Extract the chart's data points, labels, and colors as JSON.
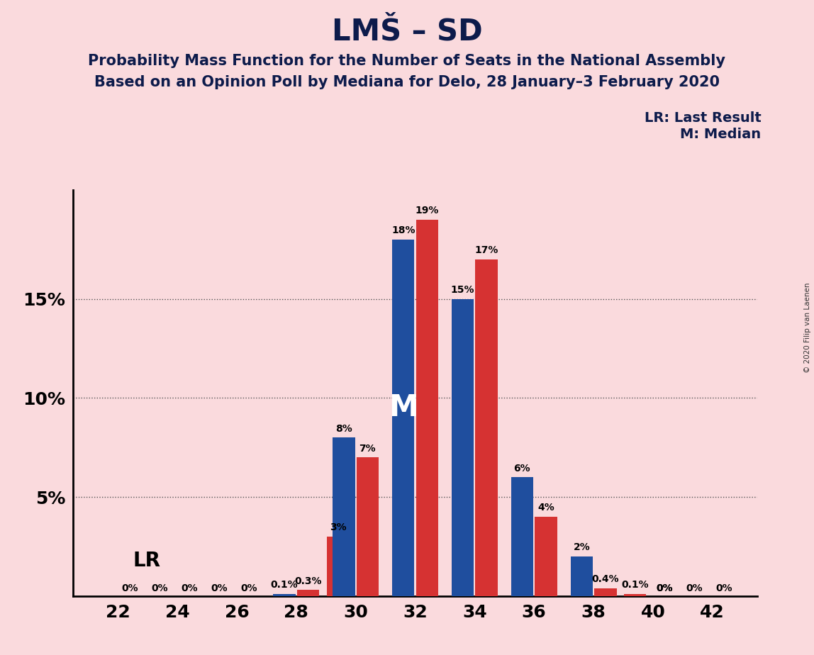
{
  "title": "LMŠ – SD",
  "subtitle1": "Probability Mass Function for the Number of Seats in the National Assembly",
  "subtitle2": "Based on an Opinion Poll by Mediana for Delo, 28 January–3 February 2020",
  "copyright": "© 2020 Filip van Laenen",
  "seats": [
    28,
    29,
    30,
    31,
    32,
    33,
    34,
    35,
    36,
    37,
    38,
    39,
    40
  ],
  "blue_values": [
    0.1,
    0.0,
    8.0,
    0.0,
    18.0,
    0.0,
    15.0,
    0.0,
    6.0,
    0.0,
    2.0,
    0.0,
    0.0
  ],
  "red_values": [
    0.3,
    3.0,
    7.0,
    0.0,
    19.0,
    0.0,
    17.0,
    0.0,
    4.0,
    0.0,
    0.4,
    0.1,
    0.0
  ],
  "blue_labels": [
    "0.1%",
    "",
    "8%",
    "",
    "18%",
    "",
    "15%",
    "",
    "6%",
    "",
    "2%",
    "",
    ""
  ],
  "red_labels": [
    "0.3%",
    "3%",
    "7%",
    "",
    "19%",
    "",
    "17%",
    "",
    "4%",
    "",
    "0.4%",
    "0.1%",
    "0%"
  ],
  "zero_labels_seats": [
    22,
    24,
    26,
    28,
    29,
    30,
    40,
    41,
    42
  ],
  "zero_label_text": "0%",
  "blue_color": "#1F4E9E",
  "red_color": "#D63232",
  "background_color": "#FADADD",
  "median_seat": 32,
  "lr_label": "LR",
  "median_label": "M",
  "legend_lr": "LR: Last Result",
  "legend_m": "M: Median",
  "yticks": [
    5,
    10,
    15
  ],
  "ylim": [
    0,
    20.5
  ],
  "xlim": [
    20.5,
    43.5
  ],
  "xtick_seats": [
    22,
    24,
    26,
    28,
    30,
    32,
    34,
    36,
    38,
    40,
    42
  ],
  "bar_width": 0.75,
  "bar_gap": 0.05
}
